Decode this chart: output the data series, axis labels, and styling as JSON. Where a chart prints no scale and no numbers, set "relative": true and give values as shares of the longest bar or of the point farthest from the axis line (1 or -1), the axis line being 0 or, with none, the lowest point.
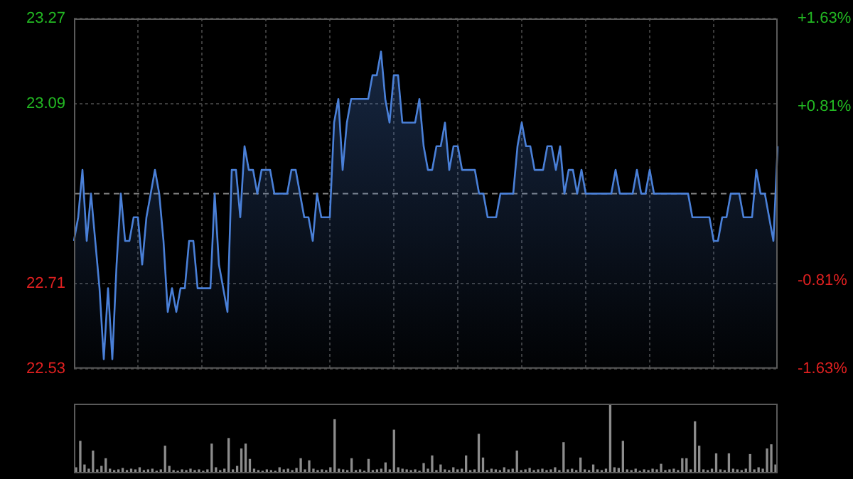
{
  "chart_data": [
    {
      "type": "area",
      "categories": [
        null,
        null,
        null,
        null,
        null,
        null,
        null,
        null,
        null,
        null,
        null,
        null,
        null,
        null,
        null,
        null,
        null,
        null,
        null,
        null,
        null,
        null,
        null,
        null,
        null,
        null,
        null,
        null,
        null,
        null,
        null,
        null,
        null,
        null,
        null,
        null,
        null,
        null,
        null,
        null,
        null,
        null,
        null,
        null,
        null,
        null,
        null,
        null,
        null,
        null,
        null,
        null,
        null,
        null,
        null,
        null,
        null,
        null,
        null,
        null,
        null,
        null,
        null,
        null,
        null,
        null,
        null,
        null,
        null,
        null,
        null,
        null,
        null,
        null,
        null,
        null,
        null,
        null,
        null,
        null,
        null,
        null,
        null,
        null,
        null,
        null,
        null,
        null,
        null,
        null,
        null,
        null,
        null,
        null,
        null,
        null,
        null,
        null,
        null,
        null,
        null,
        null,
        null,
        null,
        null,
        null,
        null,
        null,
        null,
        null,
        null,
        null,
        null,
        null,
        null,
        null,
        null,
        null,
        null,
        null,
        null,
        null,
        null,
        null,
        null,
        null,
        null,
        null,
        null,
        null,
        null,
        null,
        null,
        null,
        null,
        null,
        null,
        null,
        null,
        null,
        null,
        null,
        null,
        null,
        null,
        null,
        null,
        null,
        null,
        null,
        null,
        null,
        null,
        null,
        null,
        null,
        null,
        null,
        null,
        null,
        null,
        null,
        null,
        null,
        null,
        null
      ],
      "series": [
        {
          "color": "#4a80d8",
          "values": [
            22.8,
            22.85,
            22.95,
            22.8,
            22.9,
            22.8,
            22.7,
            22.55,
            22.7,
            22.55,
            22.75,
            22.9,
            22.8,
            22.8,
            22.85,
            22.85,
            22.75,
            22.85,
            22.9,
            22.95,
            22.9,
            22.8,
            22.65,
            22.7,
            22.65,
            22.7,
            22.7,
            22.8,
            22.8,
            22.7,
            22.7,
            22.7,
            22.7,
            22.9,
            22.75,
            22.7,
            22.65,
            22.95,
            22.95,
            22.85,
            23.0,
            22.95,
            22.95,
            22.9,
            22.95,
            22.95,
            22.95,
            22.9,
            22.9,
            22.9,
            22.9,
            22.95,
            22.95,
            22.9,
            22.85,
            22.85,
            22.8,
            22.9,
            22.85,
            22.85,
            22.85,
            23.05,
            23.1,
            22.95,
            23.05,
            23.1,
            23.1,
            23.1,
            23.1,
            23.1,
            23.15,
            23.15,
            23.2,
            23.1,
            23.05,
            23.15,
            23.15,
            23.05,
            23.05,
            23.05,
            23.05,
            23.1,
            23.0,
            22.95,
            22.95,
            23.0,
            23.0,
            23.05,
            22.95,
            23.0,
            23.0,
            22.95,
            22.95,
            22.95,
            22.95,
            22.9,
            22.9,
            22.85,
            22.85,
            22.85,
            22.9,
            22.9,
            22.9,
            22.9,
            23.0,
            23.05,
            23.0,
            23.0,
            22.95,
            22.95,
            22.95,
            23.0,
            23.0,
            22.95,
            23.0,
            22.9,
            22.95,
            22.95,
            22.9,
            22.95,
            22.9,
            22.9,
            22.9,
            22.9,
            22.9,
            22.9,
            22.9,
            22.95,
            22.9,
            22.9,
            22.9,
            22.9,
            22.95,
            22.9,
            22.9,
            22.95,
            22.9,
            22.9,
            22.9,
            22.9,
            22.9,
            22.9,
            22.9,
            22.9,
            22.9,
            22.85,
            22.85,
            22.85,
            22.85,
            22.85,
            22.8,
            22.8,
            22.85,
            22.85,
            22.9,
            22.9,
            22.9,
            22.85,
            22.85,
            22.85,
            22.95,
            22.9,
            22.9,
            22.85,
            22.8,
            23.0
          ]
        }
      ],
      "ylim": [
        22.53,
        23.27
      ],
      "yticks": [
        22.53,
        22.71,
        23.09,
        23.27
      ],
      "y2lim": [
        -1.63,
        1.63
      ],
      "y2ticks": [
        {
          "value": -1.63,
          "label": "-1.63%"
        },
        {
          "value": -0.81,
          "label": "-0.81%"
        },
        {
          "value": 0.81,
          "label": "+0.81%"
        },
        {
          "value": 1.63,
          "label": "+1.63%"
        }
      ],
      "ref_lines": [
        {
          "axis": "y",
          "value": 22.9,
          "color": "#888888",
          "line_style": "dashed"
        }
      ],
      "grid": true,
      "tick_labels": "y",
      "marker": "none",
      "line_style": "solid"
    },
    {
      "type": "bar",
      "categories": [
        null,
        null,
        null,
        null,
        null,
        null,
        null,
        null,
        null,
        null,
        null,
        null,
        null,
        null,
        null,
        null,
        null,
        null,
        null,
        null,
        null,
        null,
        null,
        null,
        null,
        null,
        null,
        null,
        null,
        null,
        null,
        null,
        null,
        null,
        null,
        null,
        null,
        null,
        null,
        null,
        null,
        null,
        null,
        null,
        null,
        null,
        null,
        null,
        null,
        null,
        null,
        null,
        null,
        null,
        null,
        null,
        null,
        null,
        null,
        null,
        null,
        null,
        null,
        null,
        null,
        null,
        null,
        null,
        null,
        null,
        null,
        null,
        null,
        null,
        null,
        null,
        null,
        null,
        null,
        null,
        null,
        null,
        null,
        null,
        null,
        null,
        null,
        null,
        null,
        null,
        null,
        null,
        null,
        null,
        null,
        null,
        null,
        null,
        null,
        null,
        null,
        null,
        null,
        null,
        null,
        null,
        null,
        null,
        null,
        null,
        null,
        null,
        null,
        null,
        null,
        null,
        null,
        null,
        null,
        null,
        null,
        null,
        null,
        null,
        null,
        null,
        null,
        null,
        null,
        null,
        null,
        null,
        null,
        null,
        null,
        null,
        null,
        null,
        null,
        null,
        null,
        null,
        null,
        null,
        null,
        null,
        null,
        null,
        null,
        null,
        null,
        null,
        null,
        null,
        null,
        null,
        null,
        null,
        null,
        null,
        null,
        null,
        null,
        null,
        null,
        null
      ],
      "relative": true,
      "color": "#8c8c8c",
      "values": [
        0.08,
        0.46,
        0.12,
        0.06,
        0.32,
        0.05,
        0.1,
        0.21,
        0.06,
        0.04,
        0.05,
        0.07,
        0.04,
        0.06,
        0.05,
        0.08,
        0.04,
        0.05,
        0.06,
        0.03,
        0.05,
        0.39,
        0.1,
        0.04,
        0.03,
        0.05,
        0.04,
        0.06,
        0.04,
        0.05,
        0.03,
        0.05,
        0.42,
        0.08,
        0.04,
        0.06,
        0.5,
        0.05,
        0.1,
        0.35,
        0.42,
        0.2,
        0.06,
        0.04,
        0.03,
        0.05,
        0.04,
        0.03,
        0.08,
        0.05,
        0.06,
        0.04,
        0.07,
        0.21,
        0.05,
        0.18,
        0.06,
        0.04,
        0.05,
        0.04,
        0.08,
        0.77,
        0.06,
        0.05,
        0.04,
        0.21,
        0.04,
        0.05,
        0.03,
        0.2,
        0.04,
        0.05,
        0.06,
        0.15,
        0.05,
        0.62,
        0.08,
        0.06,
        0.05,
        0.04,
        0.05,
        0.03,
        0.14,
        0.06,
        0.25,
        0.04,
        0.12,
        0.05,
        0.04,
        0.08,
        0.05,
        0.06,
        0.25,
        0.04,
        0.05,
        0.56,
        0.22,
        0.04,
        0.06,
        0.05,
        0.04,
        0.08,
        0.05,
        0.06,
        0.32,
        0.04,
        0.05,
        0.07,
        0.04,
        0.05,
        0.06,
        0.04,
        0.05,
        0.08,
        0.04,
        0.44,
        0.05,
        0.06,
        0.04,
        0.22,
        0.05,
        0.04,
        0.12,
        0.05,
        0.04,
        0.06,
        1,
        0.08,
        0.07,
        0.46,
        0.05,
        0.04,
        0.06,
        0.03,
        0.05,
        0.04,
        0.06,
        0.05,
        0.13,
        0.04,
        0.05,
        0.06,
        0.04,
        0.21,
        0.21,
        0.05,
        0.74,
        0.39,
        0.05,
        0.04,
        0.06,
        0.28,
        0.05,
        0.04,
        0.28,
        0.06,
        0.05,
        0.04,
        0.06,
        0.27,
        0.05,
        0.08,
        0.06,
        0.35,
        0.41,
        0.12
      ]
    }
  ]
}
